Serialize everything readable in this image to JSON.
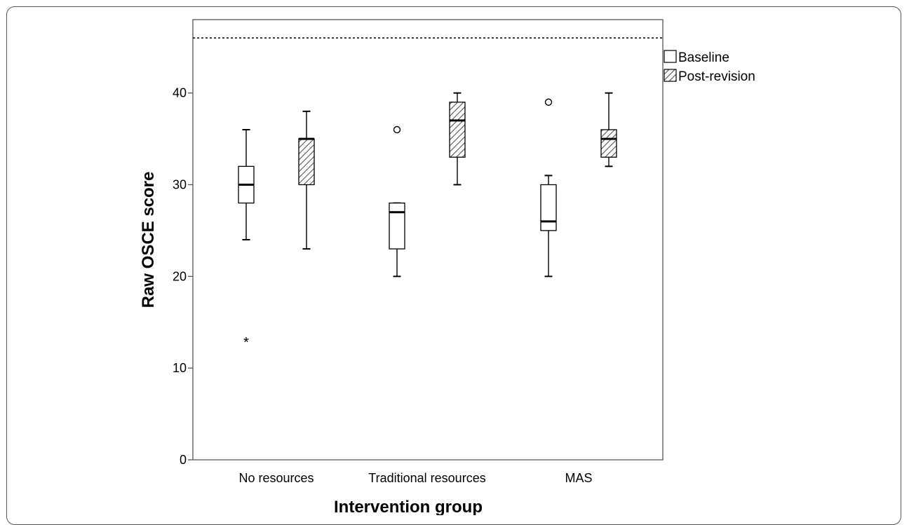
{
  "chart_data": {
    "type": "boxplot",
    "title": "",
    "xlabel": "Intervention group",
    "ylabel": "Raw OSCE score",
    "ylim": [
      0,
      48
    ],
    "yticks": [
      0,
      10,
      20,
      30,
      40
    ],
    "categories": [
      "No resources",
      "Traditional resources",
      "MAS"
    ],
    "reference_line": {
      "y": 46,
      "style": "dotted"
    },
    "legend_position": "right-top",
    "series": [
      {
        "name": "Baseline",
        "fill": "none",
        "boxes": [
          {
            "category": "No resources",
            "min": 24,
            "q1": 28,
            "median": 30,
            "q3": 32,
            "max": 36,
            "outliers": [],
            "extremes": [
              13
            ]
          },
          {
            "category": "Traditional resources",
            "min": 20,
            "q1": 23,
            "median": 27,
            "q3": 28,
            "max": 28,
            "outliers": [
              36
            ],
            "extremes": []
          },
          {
            "category": "MAS",
            "min": 20,
            "q1": 25,
            "median": 26,
            "q3": 30,
            "max": 31,
            "outliers": [
              39
            ],
            "extremes": []
          }
        ]
      },
      {
        "name": "Post-revision",
        "fill": "hatched",
        "boxes": [
          {
            "category": "No resources",
            "min": 23,
            "q1": 30,
            "median": 35,
            "q3": 35,
            "max": 38,
            "outliers": [],
            "extremes": []
          },
          {
            "category": "Traditional resources",
            "min": 30,
            "q1": 33,
            "median": 37,
            "q3": 39,
            "max": 40,
            "outliers": [],
            "extremes": []
          },
          {
            "category": "MAS",
            "min": 32,
            "q1": 33,
            "median": 35,
            "q3": 36,
            "max": 40,
            "outliers": [],
            "extremes": []
          }
        ]
      }
    ],
    "colors": {
      "line": "#000000",
      "hatch": "#555555",
      "background": "#ffffff"
    }
  }
}
